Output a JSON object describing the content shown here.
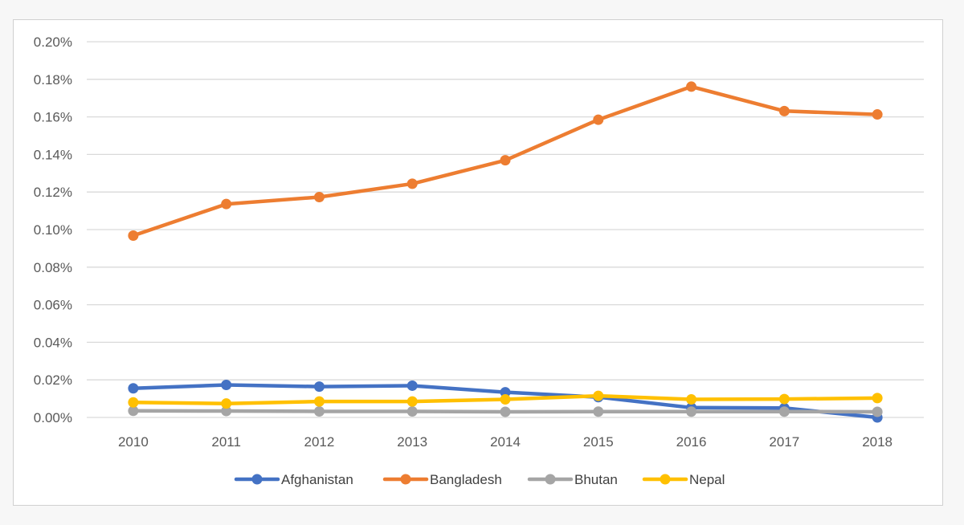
{
  "chart_data": {
    "type": "line",
    "title": "",
    "xlabel": "",
    "ylabel": "",
    "x": [
      "2010",
      "2011",
      "2012",
      "2013",
      "2014",
      "2015",
      "2016",
      "2017",
      "2018"
    ],
    "y_ticks": [
      "0.00%",
      "0.02%",
      "0.04%",
      "0.06%",
      "0.08%",
      "0.10%",
      "0.12%",
      "0.14%",
      "0.16%",
      "0.18%",
      "0.20%"
    ],
    "ylim": [
      0,
      0.2
    ],
    "y_unit": "percent",
    "grid": "horizontal",
    "legend_position": "bottom",
    "series": [
      {
        "name": "Afghanistan",
        "color": "#4472c4",
        "values": [
          0.0155,
          0.0173,
          0.0164,
          0.0169,
          0.0134,
          0.0108,
          0.0052,
          0.005,
          0.0
        ]
      },
      {
        "name": "Bangladesh",
        "color": "#ed7d31",
        "values": [
          0.0968,
          0.1136,
          0.1173,
          0.1244,
          0.1369,
          0.1585,
          0.1761,
          0.1631,
          0.1613
        ]
      },
      {
        "name": "Bhutan",
        "color": "#a5a5a5",
        "values": [
          0.0035,
          0.0034,
          0.0032,
          0.0032,
          0.003,
          0.0031,
          0.0031,
          0.0031,
          0.003
        ]
      },
      {
        "name": "Nepal",
        "color": "#ffc000",
        "values": [
          0.008,
          0.0074,
          0.0085,
          0.0085,
          0.0096,
          0.0115,
          0.0096,
          0.0098,
          0.0103
        ]
      }
    ]
  }
}
